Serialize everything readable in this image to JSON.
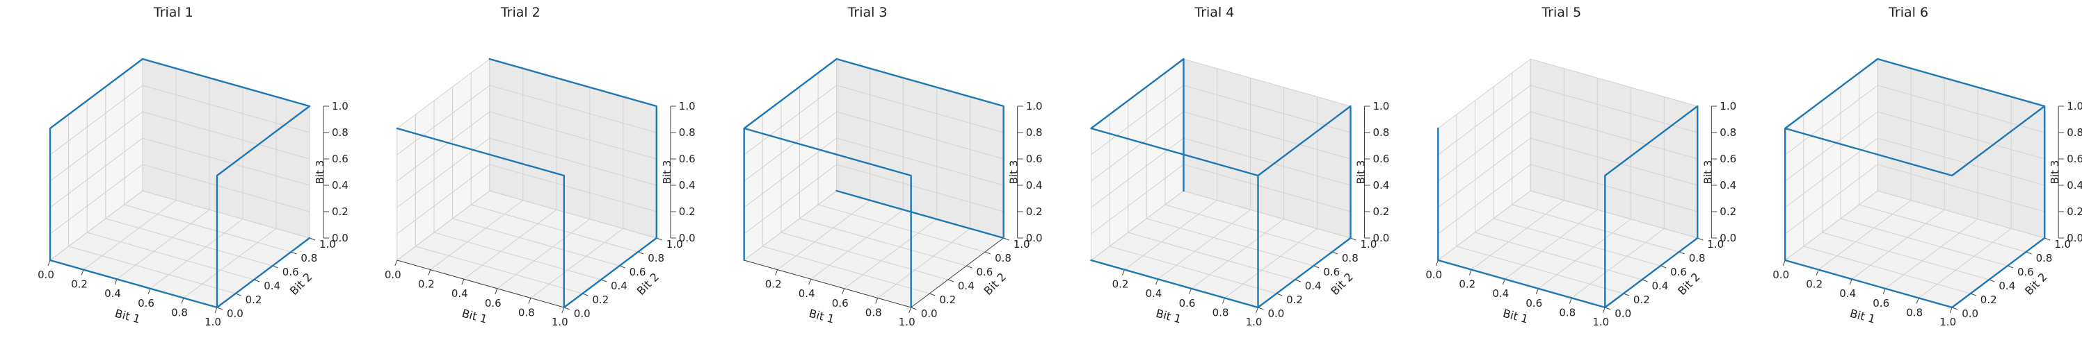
{
  "chart_data": [
    {
      "type": "line3d",
      "title": "Trial 1",
      "xlabel": "Bit 1",
      "ylabel": "Bit 2",
      "zlabel": "Bit 3",
      "xlim": [
        0,
        1
      ],
      "ylim": [
        0,
        1
      ],
      "zlim": [
        0,
        1
      ],
      "x_ticks": [
        "0.0",
        "0.2",
        "0.4",
        "0.6",
        "0.8",
        "1.0"
      ],
      "y_ticks": [
        "0.0",
        "0.2",
        "0.4",
        "0.6",
        "0.8",
        "1.0"
      ],
      "z_ticks": [
        "0.0",
        "0.2",
        "0.4",
        "0.6",
        "0.8",
        "1.0"
      ],
      "grid": true,
      "series_color": "#1f77b4",
      "points": [
        [
          1,
          1,
          0
        ],
        [
          1,
          0,
          0
        ],
        [
          0,
          0,
          0
        ],
        [
          0,
          0,
          1
        ],
        [
          0,
          1,
          1
        ],
        [
          1,
          1,
          1
        ],
        [
          1,
          0,
          1
        ],
        [
          1,
          0,
          0
        ]
      ]
    },
    {
      "type": "line3d",
      "title": "Trial 2",
      "xlabel": "Bit 1",
      "ylabel": "Bit 2",
      "zlabel": "Bit 3",
      "xlim": [
        0,
        1
      ],
      "ylim": [
        0,
        1
      ],
      "zlim": [
        0,
        1
      ],
      "x_ticks": [
        "0.0",
        "0.2",
        "0.4",
        "0.6",
        "0.8",
        "1.0"
      ],
      "y_ticks": [
        "0.0",
        "0.2",
        "0.4",
        "0.6",
        "0.8",
        "1.0"
      ],
      "z_ticks": [
        "0.0",
        "0.2",
        "0.4",
        "0.6",
        "0.8",
        "1.0"
      ],
      "grid": true,
      "series_color": "#1f77b4",
      "points": [
        [
          0,
          0,
          1
        ],
        [
          1,
          0,
          1
        ],
        [
          1,
          0,
          0
        ],
        [
          1,
          1,
          0
        ],
        [
          1,
          1,
          1
        ],
        [
          0,
          1,
          1
        ]
      ]
    },
    {
      "type": "line3d",
      "title": "Trial 3",
      "xlabel": "Bit 1",
      "ylabel": "Bit 2",
      "zlabel": "Bit 3",
      "xlim": [
        0,
        1
      ],
      "ylim": [
        0,
        1
      ],
      "zlim": [
        0,
        1
      ],
      "x_ticks": [
        "0.2",
        "0.4",
        "0.6",
        "0.8",
        "1.0"
      ],
      "y_ticks": [
        "0.0",
        "0.2",
        "0.4",
        "0.6",
        "0.8",
        "1.0"
      ],
      "z_ticks": [
        "0.0",
        "0.2",
        "0.4",
        "0.6",
        "0.8",
        "1.0"
      ],
      "grid": true,
      "series_color": "#1f77b4",
      "points": [
        [
          0,
          1,
          0
        ],
        [
          1,
          1,
          0
        ],
        [
          1,
          1,
          1
        ],
        [
          0,
          1,
          1
        ],
        [
          0,
          0,
          1
        ],
        [
          0,
          0,
          0
        ],
        [
          0,
          0,
          1
        ],
        [
          1,
          0,
          1
        ],
        [
          1,
          0,
          0
        ]
      ]
    },
    {
      "type": "line3d",
      "title": "Trial 4",
      "xlabel": "Bit 1",
      "ylabel": "Bit 2",
      "zlabel": "Bit 3",
      "xlim": [
        0,
        1
      ],
      "ylim": [
        0,
        1
      ],
      "zlim": [
        0,
        1
      ],
      "x_ticks": [
        "0.2",
        "0.4",
        "0.6",
        "0.8",
        "1.0"
      ],
      "y_ticks": [
        "0.0",
        "0.2",
        "0.4",
        "0.6",
        "0.8",
        "1.0"
      ],
      "z_ticks": [
        "0.0",
        "0.2",
        "0.4",
        "0.6",
        "0.8",
        "1.0"
      ],
      "grid": true,
      "series_color": "#1f77b4",
      "points": [
        [
          0,
          1,
          1
        ],
        [
          0,
          1,
          0
        ],
        [
          0,
          1,
          1
        ],
        [
          0,
          0,
          1
        ],
        [
          1,
          0,
          1
        ],
        [
          1,
          0,
          0
        ],
        [
          0,
          0,
          0
        ],
        [
          0,
          0,
          0
        ],
        [
          1,
          0,
          0
        ],
        [
          1,
          1,
          0
        ],
        [
          1,
          1,
          1
        ],
        [
          1,
          0,
          1
        ]
      ]
    },
    {
      "type": "line3d",
      "title": "Trial 5",
      "xlabel": "Bit 1",
      "ylabel": "Bit 2",
      "zlabel": "Bit 3",
      "xlim": [
        0,
        1
      ],
      "ylim": [
        0,
        1
      ],
      "zlim": [
        0,
        1
      ],
      "x_ticks": [
        "0.0",
        "0.2",
        "0.4",
        "0.6",
        "0.8",
        "1.0"
      ],
      "y_ticks": [
        "0.0",
        "0.2",
        "0.4",
        "0.6",
        "0.8",
        "1.0"
      ],
      "z_ticks": [
        "0.0",
        "0.2",
        "0.4",
        "0.6",
        "0.8",
        "1.0"
      ],
      "grid": true,
      "series_color": "#1f77b4",
      "points": [
        [
          0,
          0,
          1
        ],
        [
          0,
          0,
          0
        ],
        [
          1,
          0,
          0
        ],
        [
          1,
          1,
          0
        ],
        [
          1,
          1,
          1
        ],
        [
          1,
          0,
          1
        ],
        [
          1,
          0,
          0
        ]
      ]
    },
    {
      "type": "line3d",
      "title": "Trial 6",
      "xlabel": "Bit 1",
      "ylabel": "Bit 2",
      "zlabel": "Bit 3",
      "xlim": [
        0,
        1
      ],
      "ylim": [
        0,
        1
      ],
      "zlim": [
        0,
        1
      ],
      "x_ticks": [
        "0.0",
        "0.2",
        "0.4",
        "0.6",
        "0.8",
        "1.0"
      ],
      "y_ticks": [
        "0.0",
        "0.2",
        "0.4",
        "0.6",
        "0.8",
        "1.0"
      ],
      "z_ticks": [
        "0.0",
        "0.2",
        "0.4",
        "0.6",
        "0.8",
        "1.0"
      ],
      "grid": true,
      "series_color": "#1f77b4",
      "points": [
        [
          1,
          0,
          0
        ],
        [
          0,
          0,
          0
        ],
        [
          0,
          0,
          1
        ],
        [
          0,
          1,
          1
        ],
        [
          1,
          1,
          1
        ],
        [
          1,
          1,
          0
        ],
        [
          1,
          0,
          0
        ],
        [
          0,
          0,
          0
        ],
        [
          0,
          0,
          1
        ],
        [
          1,
          0,
          1
        ],
        [
          1,
          1,
          1
        ]
      ]
    }
  ]
}
